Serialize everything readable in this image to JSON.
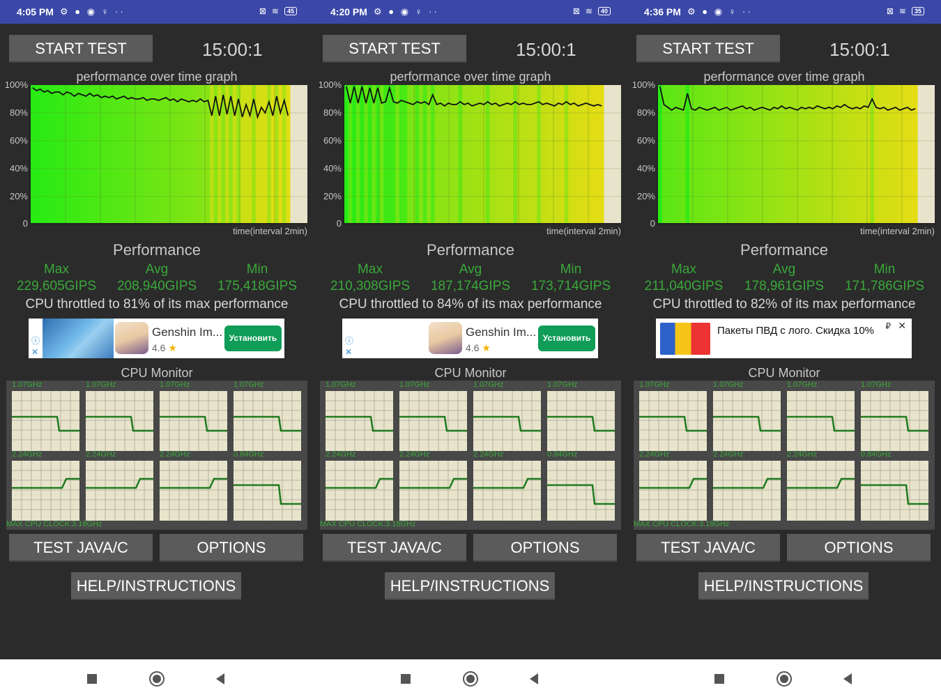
{
  "screens": [
    {
      "status": {
        "time": "4:05 PM",
        "battery": "45"
      },
      "start_label": "START TEST",
      "timer": "15:00:1",
      "graph_title": "performance over time graph",
      "y_labels": [
        "100%",
        "80%",
        "60%",
        "40%",
        "20%",
        "0"
      ],
      "x_label": "time(interval 2min)",
      "perf_title": "Performance",
      "stats": {
        "max_label": "Max",
        "avg_label": "Avg",
        "min_label": "Min",
        "max": "229,605GIPS",
        "avg": "208,940GIPS",
        "min": "175,418GIPS"
      },
      "throttle": "CPU throttled to 81% of its max performance",
      "ad": {
        "type": "app",
        "name": "Genshin Im...",
        "rating": "4.6",
        "install": "Установить"
      },
      "cpu_title": "CPU Monitor",
      "cores": [
        "1.07GHz",
        "1.07GHz",
        "1.07GHz",
        "1.07GHz",
        "2.24GHz",
        "2.24GHz",
        "2.24GHz",
        "0.84GHz"
      ],
      "max_clock": "MAX CPU CLOCK:3.18GHz",
      "java_label": "TEST JAVA/C",
      "options_label": "OPTIONS",
      "help_label": "HELP/INSTRUCTIONS",
      "perf_series": [
        98,
        96,
        97,
        95,
        96,
        94,
        95,
        95,
        93,
        95,
        94,
        92,
        94,
        93,
        92,
        94,
        92,
        93,
        91,
        92,
        91,
        92,
        90,
        91,
        92,
        90,
        91,
        90,
        90,
        91,
        89,
        90,
        90,
        89,
        90,
        91,
        89,
        90,
        88,
        90,
        89,
        88,
        89,
        88,
        90,
        88,
        89,
        78,
        92,
        78,
        93,
        79,
        92,
        78,
        90,
        77,
        86,
        78,
        90,
        77,
        84,
        80,
        88,
        78,
        92,
        80,
        89,
        78
      ]
    },
    {
      "status": {
        "time": "4:20 PM",
        "battery": "40"
      },
      "start_label": "START TEST",
      "timer": "15:00:1",
      "graph_title": "performance over time graph",
      "y_labels": [
        "100%",
        "80%",
        "60%",
        "40%",
        "20%",
        "0"
      ],
      "x_label": "time(interval 2min)",
      "perf_title": "Performance",
      "stats": {
        "max_label": "Max",
        "avg_label": "Avg",
        "min_label": "Min",
        "max": "210,308GIPS",
        "avg": "187,174GIPS",
        "min": "173,714GIPS"
      },
      "throttle": "CPU throttled to 84% of its max performance",
      "ad": {
        "type": "app",
        "name": "Genshin Im...",
        "rating": "4.6",
        "install": "Установить"
      },
      "cpu_title": "CPU Monitor",
      "cores": [
        "1.07GHz",
        "1.07GHz",
        "1.07GHz",
        "1.07GHz",
        "2.24GHz",
        "2.24GHz",
        "2.24GHz",
        "0.84GHz"
      ],
      "max_clock": "MAX CPU CLOCK:3.18GHz",
      "java_label": "TEST JAVA/C",
      "options_label": "OPTIONS",
      "help_label": "HELP/INSTRUCTIONS",
      "perf_series": [
        99,
        87,
        99,
        87,
        99,
        87,
        98,
        87,
        98,
        87,
        88,
        98,
        88,
        87,
        89,
        88,
        87,
        86,
        88,
        87,
        88,
        86,
        93,
        86,
        87,
        85,
        87,
        86,
        86,
        88,
        86,
        87,
        85,
        86,
        87,
        86,
        88,
        86,
        87,
        85,
        86,
        87,
        86,
        88,
        86,
        87,
        86,
        86,
        87,
        88,
        86,
        87,
        86,
        85,
        87,
        86,
        88,
        86,
        87,
        85,
        86,
        87,
        86,
        85,
        86,
        85
      ]
    },
    {
      "status": {
        "time": "4:36 PM",
        "battery": "35"
      },
      "start_label": "START TEST",
      "timer": "15:00:1",
      "graph_title": "performance over time graph",
      "y_labels": [
        "100%",
        "80%",
        "60%",
        "40%",
        "20%",
        "0"
      ],
      "x_label": "time(interval 2min)",
      "perf_title": "Performance",
      "stats": {
        "max_label": "Max",
        "avg_label": "Avg",
        "min_label": "Min",
        "max": "211,040GIPS",
        "avg": "178,961GIPS",
        "min": "171,786GIPS"
      },
      "throttle": "CPU throttled to 82% of its max performance",
      "ad": {
        "type": "promo",
        "text": "Пакеты ПВД с лого. Скидка 10%",
        "currency": "₽"
      },
      "cpu_title": "CPU Monitor",
      "cores": [
        "1.07GHz",
        "1.07GHz",
        "1.07GHz",
        "1.07GHz",
        "2.24GHz",
        "2.24GHz",
        "2.24GHz",
        "0.84GHz"
      ],
      "max_clock": "MAX CPU CLOCK:3.18GHz",
      "java_label": "TEST JAVA/C",
      "options_label": "OPTIONS",
      "help_label": "HELP/INSTRUCTIONS",
      "perf_series": [
        99,
        86,
        84,
        82,
        84,
        83,
        82,
        94,
        83,
        82,
        84,
        83,
        82,
        83,
        84,
        82,
        83,
        84,
        82,
        83,
        84,
        85,
        83,
        84,
        82,
        83,
        84,
        83,
        82,
        84,
        83,
        85,
        83,
        84,
        83,
        82,
        84,
        83,
        84,
        83,
        85,
        84,
        83,
        84,
        83,
        85,
        84,
        86,
        84,
        83,
        84,
        83,
        85,
        84,
        90,
        84,
        83,
        84,
        82,
        83,
        84,
        82,
        83,
        84,
        82,
        83
      ]
    }
  ]
}
